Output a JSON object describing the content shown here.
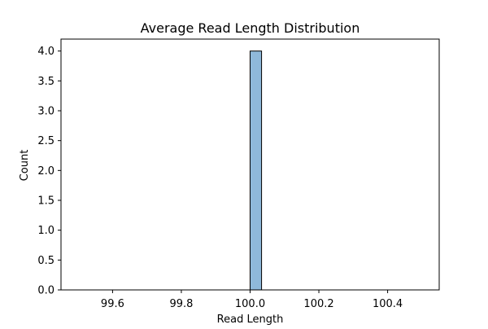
{
  "chart_data": {
    "type": "bar",
    "title": "Average Read Length Distribution",
    "xlabel": "Read Length",
    "ylabel": "Count",
    "xlim": [
      99.45,
      100.55
    ],
    "ylim": [
      0,
      4.2
    ],
    "xticks": [
      99.6,
      99.8,
      100.0,
      100.2,
      100.4
    ],
    "xtick_labels": [
      "99.6",
      "99.8",
      "100.0",
      "100.2",
      "100.4"
    ],
    "yticks": [
      0.0,
      0.5,
      1.0,
      1.5,
      2.0,
      2.5,
      3.0,
      3.5,
      4.0
    ],
    "ytick_labels": [
      "0.0",
      "0.5",
      "1.0",
      "1.5",
      "2.0",
      "2.5",
      "3.0",
      "3.5",
      "4.0"
    ],
    "bins": {
      "start": 99.5,
      "end": 100.5,
      "counts": [
        0,
        0,
        0,
        0,
        0,
        0,
        0,
        0,
        0,
        0,
        0,
        0,
        0,
        0,
        0,
        4,
        0,
        0,
        0,
        0,
        0,
        0,
        0,
        0,
        0,
        0,
        0,
        0,
        0,
        0
      ]
    },
    "grid": false,
    "colors": {
      "bar_fill": "#8fb9da",
      "bar_edge": "#000000"
    }
  }
}
